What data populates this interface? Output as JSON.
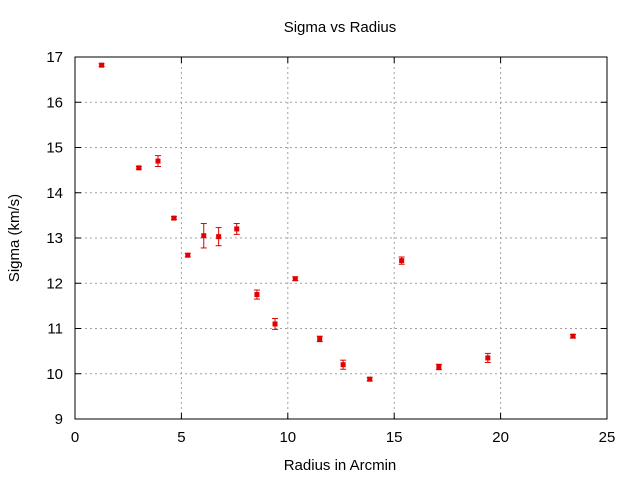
{
  "chart_data": {
    "type": "scatter",
    "title": "Sigma vs Radius",
    "xlabel": "Radius in Arcmin",
    "ylabel": "Sigma (km/s)",
    "xlim": [
      0,
      25
    ],
    "ylim": [
      9,
      17
    ],
    "xticks": [
      0,
      5,
      10,
      15,
      20,
      25
    ],
    "yticks": [
      9,
      10,
      11,
      12,
      13,
      14,
      15,
      16,
      17
    ],
    "grid": true,
    "legend": "none",
    "marker_color": "#e00000",
    "series": [
      {
        "points": [
          {
            "x": 1.25,
            "y": 16.82,
            "err": 0.03
          },
          {
            "x": 3.0,
            "y": 14.55,
            "err": 0.03
          },
          {
            "x": 3.9,
            "y": 14.7,
            "err": 0.12
          },
          {
            "x": 4.65,
            "y": 13.44,
            "err": 0.03
          },
          {
            "x": 5.3,
            "y": 12.62,
            "err": 0.04
          },
          {
            "x": 6.05,
            "y": 13.05,
            "err": 0.27
          },
          {
            "x": 6.75,
            "y": 13.03,
            "err": 0.2
          },
          {
            "x": 7.6,
            "y": 13.2,
            "err": 0.12
          },
          {
            "x": 8.55,
            "y": 11.75,
            "err": 0.1
          },
          {
            "x": 9.4,
            "y": 11.1,
            "err": 0.12
          },
          {
            "x": 10.35,
            "y": 12.1,
            "err": 0.04
          },
          {
            "x": 11.5,
            "y": 10.77,
            "err": 0.06
          },
          {
            "x": 12.6,
            "y": 10.2,
            "err": 0.1
          },
          {
            "x": 13.85,
            "y": 9.88,
            "err": 0.04
          },
          {
            "x": 15.35,
            "y": 12.5,
            "err": 0.08
          },
          {
            "x": 17.1,
            "y": 10.15,
            "err": 0.06
          },
          {
            "x": 19.4,
            "y": 10.35,
            "err": 0.1
          },
          {
            "x": 23.4,
            "y": 10.83,
            "err": 0.04
          }
        ]
      }
    ]
  }
}
